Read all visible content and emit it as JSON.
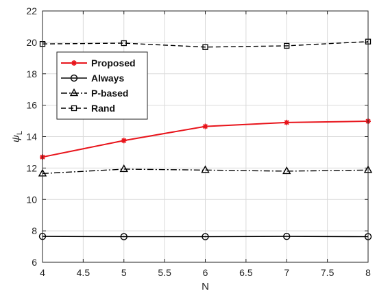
{
  "chart_data": {
    "type": "line",
    "xlabel": "N",
    "ylabel_main": "ψ",
    "ylabel_sub": "L",
    "xlim": [
      4,
      8
    ],
    "ylim": [
      6,
      22
    ],
    "xticks": [
      "4",
      "4.5",
      "5",
      "5.5",
      "6",
      "6.5",
      "7",
      "7.5",
      "8"
    ],
    "yticks": [
      "6",
      "8",
      "10",
      "12",
      "14",
      "16",
      "18",
      "20",
      "22"
    ],
    "grid": true,
    "legend_position": "upper-left",
    "x": [
      4,
      5,
      6,
      7,
      8
    ],
    "series": [
      {
        "name": "Proposed",
        "values": [
          12.7,
          13.75,
          14.65,
          14.9,
          14.98
        ],
        "color": "#e8141b",
        "dash": "",
        "marker": "star"
      },
      {
        "name": "Always",
        "values": [
          7.65,
          7.63,
          7.63,
          7.65,
          7.63
        ],
        "color": "#000000",
        "dash": "",
        "marker": "circle"
      },
      {
        "name": "P-based",
        "values": [
          11.65,
          11.93,
          11.87,
          11.8,
          11.87
        ],
        "color": "#000000",
        "dash": "9 3 2 3",
        "marker": "triangle"
      },
      {
        "name": "Rand",
        "values": [
          19.9,
          19.95,
          19.7,
          19.78,
          20.05
        ],
        "color": "#000000",
        "dash": "7 4",
        "marker": "square"
      }
    ]
  }
}
